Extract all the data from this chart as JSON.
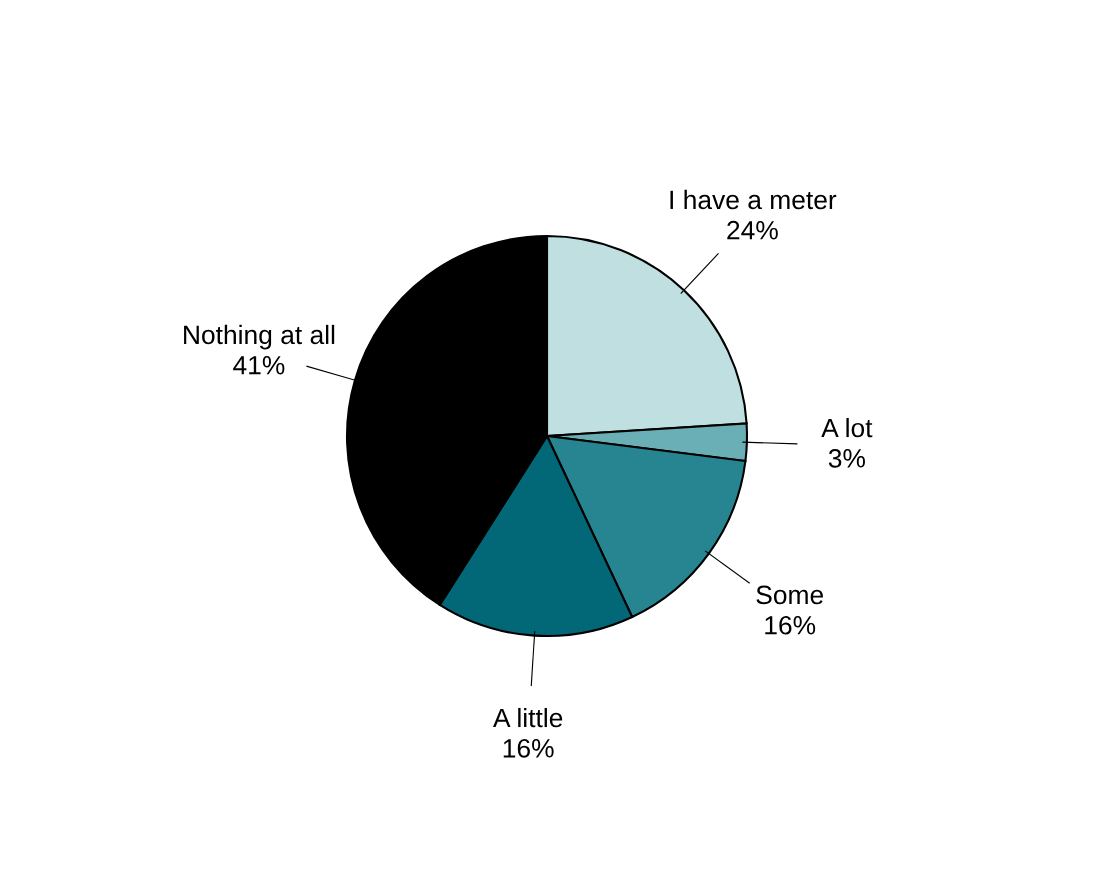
{
  "chart_data": {
    "type": "pie",
    "categories": [
      "I have a meter",
      "A lot",
      "Some",
      "A little",
      "Nothing at all"
    ],
    "values": [
      24,
      3,
      16,
      16,
      41
    ],
    "value_labels": [
      "24%",
      "3%",
      "16%",
      "16%",
      "41%"
    ],
    "colors": [
      "#c0dfe1",
      "#6aaeb6",
      "#268591",
      "#026878",
      "#000000"
    ]
  }
}
